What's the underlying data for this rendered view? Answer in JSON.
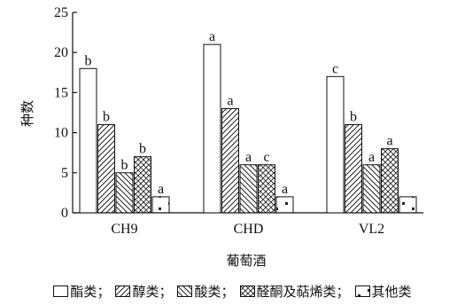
{
  "chart_data": {
    "type": "bar",
    "categories": [
      "CH9",
      "CHD",
      "VL2"
    ],
    "series": [
      {
        "name": "酯类",
        "pattern": "blank",
        "values": [
          18,
          21,
          17
        ],
        "labels": [
          "b",
          "a",
          "c"
        ]
      },
      {
        "name": "醇类",
        "pattern": "diagonal",
        "values": [
          11,
          13,
          11
        ],
        "labels": [
          "b",
          "a",
          "b"
        ]
      },
      {
        "name": "酸类",
        "pattern": "back-diagonal",
        "values": [
          5,
          6,
          6
        ],
        "labels": [
          "b",
          "a",
          "a"
        ]
      },
      {
        "name": "醛酮及萜烯类",
        "pattern": "crosshatch",
        "values": [
          7,
          6,
          8
        ],
        "labels": [
          "b",
          "c",
          "a"
        ]
      },
      {
        "name": "其他类",
        "pattern": "dots",
        "values": [
          2,
          2,
          2
        ],
        "labels": [
          "a",
          "a",
          ""
        ]
      }
    ],
    "yticks": [
      0,
      5,
      10,
      15,
      20,
      25
    ],
    "ylim": [
      0,
      25
    ],
    "xlabel": "葡萄酒",
    "ylabel": "种数",
    "legend_position": "bottom",
    "separator": "；"
  }
}
